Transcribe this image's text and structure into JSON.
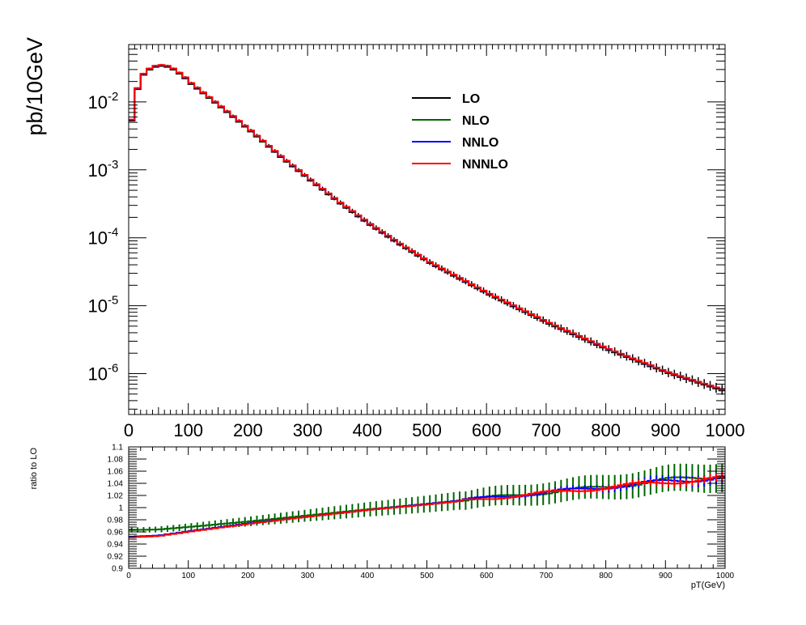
{
  "chart_data": [
    {
      "type": "line",
      "panel": "top",
      "ylabel": "pb/10GeV",
      "xlim": [
        0,
        1000
      ],
      "ylim": [
        2.5e-07,
        0.07
      ],
      "yscale": "log",
      "x_ticks": [
        "0",
        "100",
        "200",
        "300",
        "400",
        "500",
        "600",
        "700",
        "800",
        "900",
        "1000"
      ],
      "y_ticks": [
        {
          "base": "10",
          "exp": "-2",
          "value": 0.01
        },
        {
          "base": "10",
          "exp": "-3",
          "value": 0.001
        },
        {
          "base": "10",
          "exp": "-4",
          "value": 0.0001
        },
        {
          "base": "10",
          "exp": "-5",
          "value": 1e-05
        },
        {
          "base": "10",
          "exp": "-6",
          "value": 1e-06
        }
      ],
      "legend_position": "top-center",
      "series": [
        {
          "name": "LO",
          "color": "#000000"
        },
        {
          "name": "NLO",
          "color": "#006600"
        },
        {
          "name": "NNLO",
          "color": "#0000ff"
        },
        {
          "name": "NNNLO",
          "color": "#ff0000"
        }
      ],
      "x": [
        0,
        10,
        20,
        30,
        40,
        50,
        60,
        70,
        80,
        90,
        100,
        150,
        200,
        250,
        300,
        350,
        400,
        450,
        500,
        600,
        700,
        800,
        900,
        1000
      ],
      "y": [
        0.0055,
        0.016,
        0.026,
        0.031,
        0.034,
        0.035,
        0.034,
        0.031,
        0.027,
        0.023,
        0.019,
        0.0086,
        0.0038,
        0.0016,
        0.00072,
        0.00033,
        0.00016,
        8.2e-05,
        4.4e-05,
        1.5e-05,
        5.6e-06,
        2.3e-06,
        1.05e-06,
        5.5e-07
      ]
    },
    {
      "type": "line",
      "panel": "bottom",
      "ylabel": "ratio to LO",
      "xlabel": "pT(GeV)",
      "xlim": [
        0,
        1000
      ],
      "ylim": [
        0.9,
        1.1
      ],
      "x_ticks": [
        "0",
        "100",
        "200",
        "300",
        "400",
        "500",
        "600",
        "700",
        "800",
        "900",
        "1000"
      ],
      "y_ticks": [
        "0.9",
        "0.92",
        "0.94",
        "0.96",
        "0.98",
        "1",
        "1.02",
        "1.04",
        "1.06",
        "1.08",
        "1.1"
      ],
      "series": [
        {
          "name": "NLO",
          "color": "#006600",
          "x": [
            0,
            50,
            100,
            200,
            300,
            400,
            500,
            600,
            700,
            800,
            900,
            1000
          ],
          "y": [
            0.963,
            0.964,
            0.968,
            0.977,
            0.987,
            0.997,
            1.006,
            1.016,
            1.025,
            1.034,
            1.045,
            1.053
          ]
        },
        {
          "name": "NNLO",
          "color": "#0000ff",
          "x": [
            0,
            50,
            100,
            200,
            300,
            400,
            500,
            600,
            700,
            800,
            900,
            1000
          ],
          "y": [
            0.952,
            0.954,
            0.961,
            0.974,
            0.985,
            0.996,
            1.006,
            1.016,
            1.025,
            1.034,
            1.043,
            1.05
          ]
        },
        {
          "name": "NNNLO",
          "color": "#ff0000",
          "x": [
            0,
            50,
            100,
            200,
            300,
            400,
            500,
            600,
            700,
            800,
            900,
            1000
          ],
          "y": [
            0.951,
            0.953,
            0.96,
            0.973,
            0.985,
            0.996,
            1.005,
            1.015,
            1.024,
            1.033,
            1.042,
            1.048
          ]
        }
      ]
    }
  ]
}
